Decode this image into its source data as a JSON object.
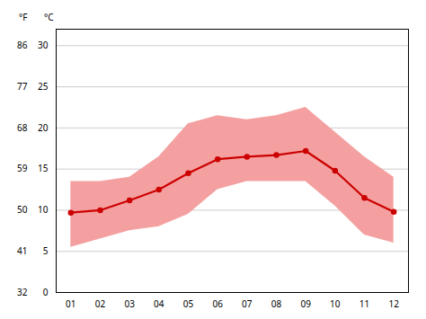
{
  "chart_data": {
    "type": "line",
    "x": [
      1,
      2,
      3,
      4,
      5,
      6,
      7,
      8,
      9,
      10,
      11,
      12
    ],
    "xlim": [
      0.5,
      12.5
    ],
    "xticks": [
      {
        "value": 1,
        "label": "01"
      },
      {
        "value": 2,
        "label": "02"
      },
      {
        "value": 3,
        "label": "03"
      },
      {
        "value": 4,
        "label": "04"
      },
      {
        "value": 5,
        "label": "05"
      },
      {
        "value": 6,
        "label": "06"
      },
      {
        "value": 7,
        "label": "07"
      },
      {
        "value": 8,
        "label": "08"
      },
      {
        "value": 9,
        "label": "09"
      },
      {
        "value": 10,
        "label": "10"
      },
      {
        "value": 11,
        "label": "11"
      },
      {
        "value": 12,
        "label": "12"
      }
    ],
    "ylim": [
      0,
      32
    ],
    "yticks": [
      0,
      5,
      10,
      15,
      20,
      25,
      30
    ],
    "ylabel": "°C",
    "y2lim": [
      32,
      89.6
    ],
    "y2ticks": [
      32,
      41,
      50,
      59,
      68,
      77,
      86
    ],
    "y2label": "°F",
    "grid": true,
    "series": [
      {
        "type": "area",
        "lower": [
          5.5,
          6.5,
          7.5,
          8.0,
          9.5,
          12.5,
          13.5,
          13.5,
          13.5,
          10.5,
          7.0,
          6.0
        ],
        "upper": [
          13.5,
          13.5,
          14.0,
          16.5,
          20.5,
          21.5,
          21.0,
          21.5,
          22.5,
          19.5,
          16.5,
          14.0
        ],
        "color": "#f4a0a0"
      },
      {
        "type": "line",
        "values": [
          9.7,
          10.0,
          11.2,
          12.5,
          14.5,
          16.2,
          16.5,
          16.7,
          17.2,
          14.8,
          11.5,
          9.8
        ],
        "color": "#cc0000",
        "marker": "circle"
      }
    ]
  }
}
